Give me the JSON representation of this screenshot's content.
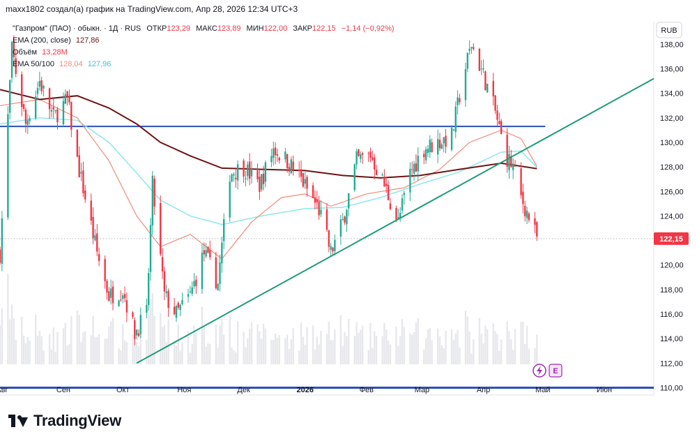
{
  "attribution": "maxx1802 создал(а) график на TradingView.com, Апр 28, 2026 12:34 UTC+3",
  "legend": {
    "symbol": "\"Газпром\" (ПАО) · обыкн. · 1Д · RUS",
    "open_label": "ОТКР",
    "open": "123,29",
    "high_label": "МАКС",
    "high": "123,89",
    "low_label": "МИН",
    "low": "122,00",
    "close_label": "ЗАКР",
    "close": "122,15",
    "change": "−1,14 (−0,92%)",
    "ema200_label": "EMA (200, close)",
    "ema200_value": "127,86",
    "volume_label": "Объём",
    "volume_value": "13,28M",
    "ema_pair_label": "EMA 50/100",
    "ema50_value": "128,04",
    "ema100_value": "127,96"
  },
  "currency_button": "RUB",
  "last_price_label": "122,15",
  "brand": "TradingView",
  "colors": {
    "up": "#22ab94",
    "down": "#f23645",
    "ema200": "#6d1414",
    "ema50": "#f28b7a",
    "ema100": "#8fe6ee",
    "level": "#2a4fbf",
    "trendline": "#1e9c7a",
    "volume": "#e6e8ec",
    "price_tag": "#f23645"
  },
  "icons": [
    "lightning-icon",
    "earnings-icon",
    "tradingview-logo-icon"
  ],
  "chart_data": {
    "type": "candlestick",
    "y_ticks": [
      "138,00",
      "136,00",
      "134,00",
      "132,00",
      "130,00",
      "128,00",
      "126,00",
      "124,00",
      "122,00",
      "120,00",
      "118,00",
      "116,00",
      "114,00",
      "112,00",
      "110,00"
    ],
    "y_tick_values": [
      138,
      136,
      134,
      132,
      130,
      128,
      126,
      124,
      122,
      120,
      118,
      116,
      114,
      112,
      110
    ],
    "ylim": [
      109.4,
      139.9
    ],
    "x_ticks": [
      "Авг",
      "Сен",
      "Окт",
      "Ноя",
      "Дек",
      "2026",
      "Фев",
      "Мар",
      "Апр",
      "Май",
      "Июн"
    ],
    "x_tick_dates": [
      "2025-08-01",
      "2025-09-01",
      "2025-10-01",
      "2025-11-01",
      "2025-12-01",
      "2026-01-01",
      "2026-02-01",
      "2026-03-01",
      "2026-04-01",
      "2026-05-01",
      "2026-06-01"
    ],
    "x_range": [
      "2025-07-31",
      "2026-06-26"
    ],
    "price_path": [
      [
        "2025-07-31",
        121.0
      ],
      [
        "2025-08-06",
        137.5
      ],
      [
        "2025-08-13",
        131.5
      ],
      [
        "2025-08-20",
        135.0
      ],
      [
        "2025-08-27",
        132.0
      ],
      [
        "2025-09-03",
        133.5
      ],
      [
        "2025-09-08",
        128.5
      ],
      [
        "2025-09-12",
        125.5
      ],
      [
        "2025-09-18",
        121.0
      ],
      [
        "2025-09-24",
        117.5
      ],
      [
        "2025-10-01",
        118.0
      ],
      [
        "2025-10-07",
        114.5
      ],
      [
        "2025-10-13",
        116.0
      ],
      [
        "2025-10-16",
        126.5
      ],
      [
        "2025-10-22",
        117.5
      ],
      [
        "2025-10-28",
        116.0
      ],
      [
        "2025-11-04",
        117.5
      ],
      [
        "2025-11-11",
        121.0
      ],
      [
        "2025-11-18",
        118.5
      ],
      [
        "2025-11-24",
        127.5
      ],
      [
        "2025-12-01",
        128.0
      ],
      [
        "2025-12-09",
        126.5
      ],
      [
        "2025-12-16",
        129.5
      ],
      [
        "2025-12-23",
        128.5
      ],
      [
        "2025-12-30",
        127.0
      ],
      [
        "2026-01-08",
        124.5
      ],
      [
        "2026-01-14",
        121.0
      ],
      [
        "2026-01-20",
        123.5
      ],
      [
        "2026-01-27",
        128.5
      ],
      [
        "2026-02-03",
        129.0
      ],
      [
        "2026-02-10",
        126.5
      ],
      [
        "2026-02-17",
        123.5
      ],
      [
        "2026-02-23",
        127.5
      ],
      [
        "2026-03-02",
        129.5
      ],
      [
        "2026-03-09",
        130.0
      ],
      [
        "2026-03-16",
        130.5
      ],
      [
        "2026-03-22",
        135.5
      ],
      [
        "2026-03-26",
        138.0
      ],
      [
        "2026-04-01",
        135.5
      ],
      [
        "2026-04-07",
        132.5
      ],
      [
        "2026-04-12",
        129.0
      ],
      [
        "2026-04-16",
        128.0
      ],
      [
        "2026-04-20",
        125.5
      ],
      [
        "2026-04-25",
        123.5
      ],
      [
        "2026-04-28",
        122.15
      ]
    ],
    "ema200": [
      [
        "2025-07-31",
        134.3
      ],
      [
        "2025-08-20",
        133.5
      ],
      [
        "2025-09-08",
        133.8
      ],
      [
        "2025-09-24",
        132.8
      ],
      [
        "2025-10-08",
        131.5
      ],
      [
        "2025-10-20",
        130.0
      ],
      [
        "2025-11-04",
        128.9
      ],
      [
        "2025-11-20",
        127.9
      ],
      [
        "2025-12-10",
        127.8
      ],
      [
        "2026-01-01",
        127.7
      ],
      [
        "2026-01-20",
        127.3
      ],
      [
        "2026-02-08",
        127.1
      ],
      [
        "2026-02-28",
        127.3
      ],
      [
        "2026-03-20",
        127.8
      ],
      [
        "2026-04-10",
        128.3
      ],
      [
        "2026-04-28",
        127.86
      ]
    ],
    "ema50": [
      [
        "2025-07-31",
        133.0
      ],
      [
        "2025-08-20",
        133.5
      ],
      [
        "2025-09-08",
        132.0
      ],
      [
        "2025-09-24",
        128.5
      ],
      [
        "2025-10-08",
        124.0
      ],
      [
        "2025-10-20",
        121.5
      ],
      [
        "2025-11-04",
        122.5
      ],
      [
        "2025-11-20",
        120.5
      ],
      [
        "2025-12-05",
        123.5
      ],
      [
        "2025-12-20",
        125.5
      ],
      [
        "2026-01-01",
        125.8
      ],
      [
        "2026-01-14",
        124.8
      ],
      [
        "2026-02-01",
        125.8
      ],
      [
        "2026-02-20",
        126.3
      ],
      [
        "2026-03-10",
        127.8
      ],
      [
        "2026-03-25",
        130.0
      ],
      [
        "2026-04-10",
        131.0
      ],
      [
        "2026-04-20",
        130.3
      ],
      [
        "2026-04-28",
        128.04
      ]
    ],
    "ema100": [
      [
        "2025-07-31",
        131.5
      ],
      [
        "2025-08-20",
        132.0
      ],
      [
        "2025-09-08",
        131.8
      ],
      [
        "2025-09-24",
        130.0
      ],
      [
        "2025-10-08",
        127.5
      ],
      [
        "2025-10-20",
        125.3
      ],
      [
        "2025-11-04",
        124.0
      ],
      [
        "2025-11-20",
        123.3
      ],
      [
        "2025-12-10",
        124.0
      ],
      [
        "2026-01-01",
        124.6
      ],
      [
        "2026-01-20",
        124.7
      ],
      [
        "2026-02-08",
        125.5
      ],
      [
        "2026-02-28",
        126.6
      ],
      [
        "2026-03-20",
        127.6
      ],
      [
        "2026-04-10",
        129.2
      ],
      [
        "2026-04-20",
        129.3
      ],
      [
        "2026-04-28",
        127.96
      ]
    ],
    "horizontal_levels": [
      131.3,
      110.0
    ],
    "trendline": [
      [
        "2025-10-08",
        112.0
      ],
      [
        "2026-06-26",
        135.2
      ]
    ]
  }
}
